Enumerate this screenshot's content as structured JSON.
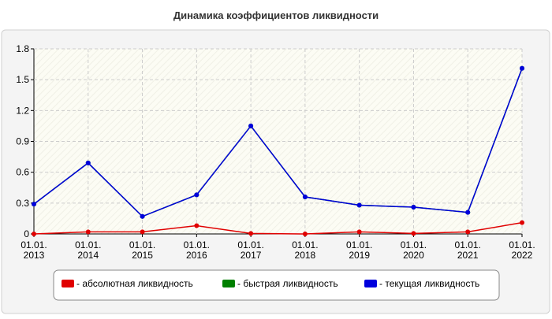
{
  "chart_data": {
    "type": "line",
    "title": "Динамика коэффициентов ликвидности",
    "categories": [
      "01.01.\n2013",
      "01.01.\n2014",
      "01.01.\n2015",
      "01.01.\n2016",
      "01.01.\n2017",
      "01.01.\n2018",
      "01.01.\n2019",
      "01.01.\n2020",
      "01.01.\n2021",
      "01.01.\n2022"
    ],
    "series": [
      {
        "name": "- абсолютная ликвидность",
        "color": "#e00000",
        "values": [
          0,
          0.02,
          0.02,
          0.08,
          0.005,
          0,
          0.02,
          0.005,
          0.02,
          0.11
        ]
      },
      {
        "name": "- быстрая ликвидность",
        "color": "#008000",
        "values": [
          0.29,
          0.69,
          0.17,
          0.38,
          1.05,
          0.36,
          0.28,
          0.26,
          0.21,
          1.61
        ]
      },
      {
        "name": "- текущая ликвидность",
        "color": "#0000dd",
        "values": [
          0.29,
          0.69,
          0.17,
          0.38,
          1.05,
          0.36,
          0.28,
          0.26,
          0.21,
          1.61
        ]
      }
    ],
    "ylim": [
      0,
      1.8
    ],
    "yticks": [
      0,
      0.3,
      0.6,
      0.9,
      1.2,
      1.5,
      1.8
    ],
    "grid": true
  }
}
